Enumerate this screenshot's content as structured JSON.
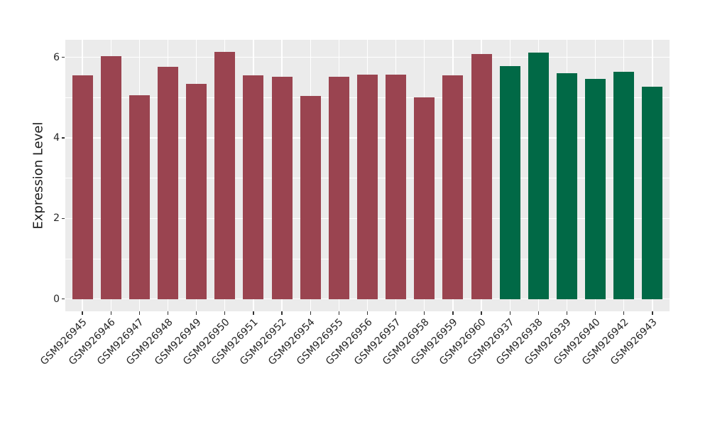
{
  "chart_data": {
    "type": "bar",
    "title": "",
    "xlabel": "",
    "ylabel": "Expression Level",
    "ylim": [
      0,
      6.45
    ],
    "yticks": [
      0,
      2,
      4,
      6
    ],
    "yticks_minor": [
      1,
      3,
      5
    ],
    "grid": true,
    "legend_position": "none",
    "categories": [
      "GSM926945",
      "GSM926946",
      "GSM926947",
      "GSM926948",
      "GSM926949",
      "GSM926950",
      "GSM926951",
      "GSM926952",
      "GSM926954",
      "GSM926955",
      "GSM926956",
      "GSM926957",
      "GSM926958",
      "GSM926959",
      "GSM926960",
      "GSM926937",
      "GSM926938",
      "GSM926939",
      "GSM926940",
      "GSM926942",
      "GSM926943"
    ],
    "values": [
      5.56,
      6.03,
      5.06,
      5.77,
      5.35,
      6.13,
      5.56,
      5.52,
      5.04,
      5.52,
      5.57,
      5.57,
      5.01,
      5.55,
      6.09,
      5.79,
      6.12,
      5.6,
      5.46,
      5.65,
      5.27
    ],
    "bar_groups": [
      "group1",
      "group1",
      "group1",
      "group1",
      "group1",
      "group1",
      "group1",
      "group1",
      "group1",
      "group1",
      "group1",
      "group1",
      "group1",
      "group1",
      "group1",
      "group2",
      "group2",
      "group2",
      "group2",
      "group2",
      "group2"
    ],
    "group_colors": {
      "group1": "#9A4450",
      "group2": "#016946"
    },
    "colors": {
      "panel_background": "#EBEBEB",
      "gridline": "#FFFFFF",
      "tick_mark": "#333333",
      "tick_text": "#262626",
      "axis_title_text": "#1A1A1A",
      "figure_background": "#FFFFFF"
    }
  }
}
